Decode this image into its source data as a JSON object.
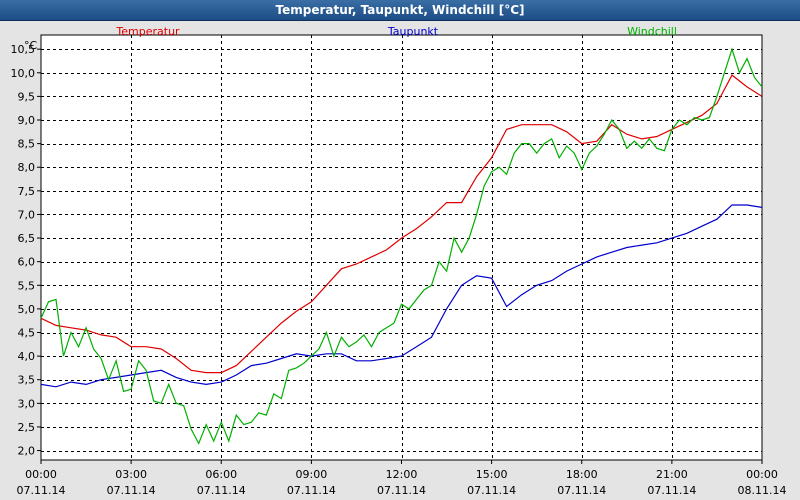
{
  "window": {
    "title": "Temperatur, Taupunkt, Windchill [°C]"
  },
  "chart_data": {
    "type": "line",
    "title": "Temperatur, Taupunkt, Windchill [°C]",
    "ylabel": "°C",
    "ylim": [
      1.8,
      10.8
    ],
    "yticks": [
      "2,0",
      "2,5",
      "3,0",
      "3,5",
      "4,0",
      "4,5",
      "5,0",
      "5,5",
      "6,0",
      "6,5",
      "7,0",
      "7,5",
      "8,0",
      "8,5",
      "9,0",
      "9,5",
      "10,0",
      "10,5"
    ],
    "xlim": [
      0,
      24
    ],
    "xticks": [
      {
        "time": "00:00",
        "date": "07.11.14"
      },
      {
        "time": "03:00",
        "date": "07.11.14"
      },
      {
        "time": "06:00",
        "date": "07.11.14"
      },
      {
        "time": "09:00",
        "date": "07.11.14"
      },
      {
        "time": "12:00",
        "date": "07.11.14"
      },
      {
        "time": "15:00",
        "date": "07.11.14"
      },
      {
        "time": "18:00",
        "date": "07.11.14"
      },
      {
        "time": "21:00",
        "date": "07.11.14"
      },
      {
        "time": "00:00",
        "date": "08.11.14"
      }
    ],
    "grid": true,
    "legend": "top",
    "series": [
      {
        "name": "Temperatur",
        "color": "#e00000",
        "x": [
          0,
          0.5,
          1,
          1.5,
          2,
          2.5,
          3,
          3.5,
          4,
          4.5,
          5,
          5.5,
          6,
          6.5,
          7,
          7.5,
          8,
          8.5,
          9,
          9.5,
          10,
          10.5,
          11,
          11.5,
          12,
          12.5,
          13,
          13.5,
          14,
          14.5,
          15,
          15.5,
          16,
          16.5,
          17,
          17.5,
          18,
          18.5,
          19,
          19.5,
          20,
          20.5,
          21,
          21.5,
          22,
          22.5,
          23,
          23.5,
          24
        ],
        "values": [
          4.8,
          4.65,
          4.6,
          4.55,
          4.45,
          4.4,
          4.2,
          4.2,
          4.15,
          3.95,
          3.7,
          3.65,
          3.65,
          3.8,
          4.1,
          4.4,
          4.7,
          4.95,
          5.15,
          5.5,
          5.85,
          5.95,
          6.1,
          6.25,
          6.5,
          6.7,
          6.95,
          7.25,
          7.25,
          7.8,
          8.2,
          8.8,
          8.9,
          8.9,
          8.9,
          8.75,
          8.5,
          8.55,
          8.9,
          8.7,
          8.6,
          8.65,
          8.8,
          8.95,
          9.1,
          9.35,
          9.95,
          9.7,
          9.5
        ]
      },
      {
        "name": "Taupunkt",
        "color": "#0000cc",
        "x": [
          0,
          0.5,
          1,
          1.5,
          2,
          2.5,
          3,
          3.5,
          4,
          4.5,
          5,
          5.5,
          6,
          6.5,
          7,
          7.5,
          8,
          8.5,
          9,
          9.5,
          10,
          10.5,
          11,
          11.5,
          12,
          12.5,
          13,
          13.5,
          14,
          14.5,
          15,
          15.5,
          16,
          16.5,
          17,
          17.5,
          18,
          18.5,
          19,
          19.5,
          20,
          20.5,
          21,
          21.5,
          22,
          22.5,
          23,
          23.5,
          24
        ],
        "values": [
          3.4,
          3.35,
          3.45,
          3.4,
          3.5,
          3.55,
          3.6,
          3.65,
          3.7,
          3.55,
          3.45,
          3.4,
          3.45,
          3.6,
          3.8,
          3.85,
          3.95,
          4.05,
          4.0,
          4.05,
          4.05,
          3.9,
          3.9,
          3.95,
          4.0,
          4.2,
          4.4,
          5.0,
          5.5,
          5.7,
          5.65,
          5.05,
          5.3,
          5.5,
          5.6,
          5.8,
          5.95,
          6.1,
          6.2,
          6.3,
          6.35,
          6.4,
          6.5,
          6.6,
          6.75,
          6.9,
          7.2,
          7.2,
          7.15
        ]
      },
      {
        "name": "Windchill",
        "color": "#00b000",
        "x": [
          0,
          0.25,
          0.5,
          0.75,
          1,
          1.25,
          1.5,
          1.75,
          2,
          2.25,
          2.5,
          2.75,
          3,
          3.25,
          3.5,
          3.75,
          4,
          4.25,
          4.5,
          4.75,
          5,
          5.25,
          5.5,
          5.75,
          6,
          6.25,
          6.5,
          6.75,
          7,
          7.25,
          7.5,
          7.75,
          8,
          8.25,
          8.5,
          8.75,
          9,
          9.25,
          9.5,
          9.75,
          10,
          10.25,
          10.5,
          10.75,
          11,
          11.25,
          11.5,
          11.75,
          12,
          12.25,
          12.5,
          12.75,
          13,
          13.25,
          13.5,
          13.75,
          14,
          14.25,
          14.5,
          14.75,
          15,
          15.25,
          15.5,
          15.75,
          16,
          16.25,
          16.5,
          16.75,
          17,
          17.25,
          17.5,
          17.75,
          18,
          18.25,
          18.5,
          18.75,
          19,
          19.25,
          19.5,
          19.75,
          20,
          20.25,
          20.5,
          20.75,
          21,
          21.25,
          21.5,
          21.75,
          22,
          22.25,
          22.5,
          22.75,
          23,
          23.25,
          23.5,
          23.75,
          24
        ],
        "values": [
          4.8,
          5.15,
          5.2,
          4.0,
          4.5,
          4.2,
          4.6,
          4.15,
          3.95,
          3.5,
          3.9,
          3.25,
          3.3,
          3.9,
          3.7,
          3.05,
          3.0,
          3.4,
          3.0,
          2.95,
          2.45,
          2.15,
          2.55,
          2.2,
          2.6,
          2.2,
          2.75,
          2.55,
          2.6,
          2.8,
          2.75,
          3.2,
          3.1,
          3.7,
          3.75,
          3.85,
          4.0,
          4.15,
          4.5,
          4.0,
          4.4,
          4.2,
          4.3,
          4.45,
          4.2,
          4.5,
          4.6,
          4.7,
          5.1,
          5.0,
          5.2,
          5.4,
          5.5,
          6.0,
          5.8,
          6.5,
          6.2,
          6.5,
          7.0,
          7.6,
          7.9,
          8.0,
          7.85,
          8.3,
          8.5,
          8.5,
          8.3,
          8.5,
          8.6,
          8.2,
          8.45,
          8.3,
          7.95,
          8.3,
          8.45,
          8.7,
          9.0,
          8.8,
          8.4,
          8.55,
          8.4,
          8.6,
          8.4,
          8.35,
          8.8,
          9.0,
          8.9,
          9.05,
          9.0,
          9.05,
          9.5,
          10.0,
          10.5,
          10.0,
          10.3,
          9.9,
          9.7
        ]
      }
    ]
  }
}
